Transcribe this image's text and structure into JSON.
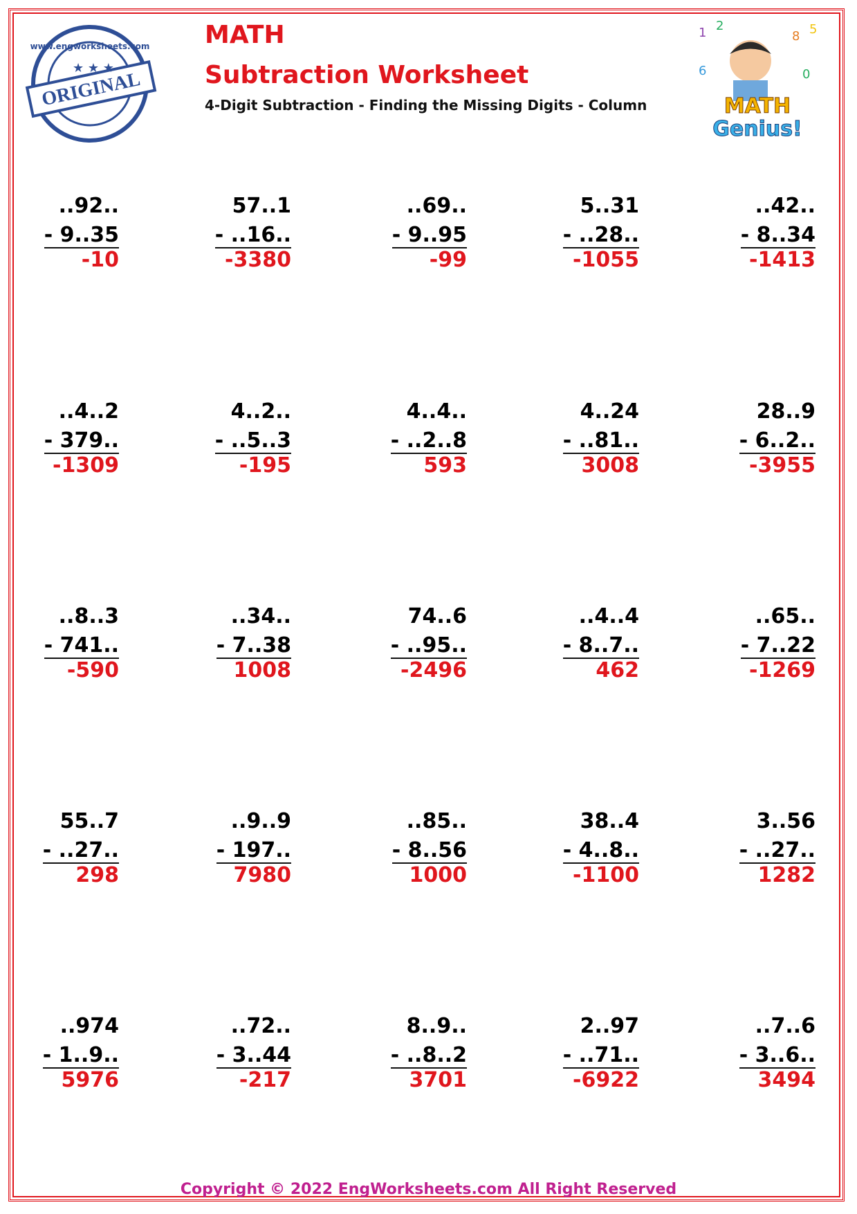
{
  "header": {
    "title": "MATH",
    "heading": "Subtraction Worksheet",
    "subtitle": "4-Digit Subtraction - Finding the Missing Digits - Column"
  },
  "stamp": {
    "label": "ORIGINAL",
    "url": "www.engworksheets.com"
  },
  "logo": {
    "line1": "MATH",
    "line2": "Genius!"
  },
  "problems": [
    [
      {
        "top": "..92..",
        "bottom": "- 9..35",
        "answer": -10
      },
      {
        "top": "57..1",
        "bottom": "- ..16..",
        "answer": -3380
      },
      {
        "top": "..69..",
        "bottom": "- 9..95",
        "answer": -99
      },
      {
        "top": "5..31",
        "bottom": "- ..28..",
        "answer": -1055
      },
      {
        "top": "..42..",
        "bottom": "- 8..34",
        "answer": -1413
      }
    ],
    [
      {
        "top": "..4..2",
        "bottom": "- 379..",
        "answer": -1309
      },
      {
        "top": "4..2..",
        "bottom": "- ..5..3",
        "answer": -195
      },
      {
        "top": "4..4..",
        "bottom": "- ..2..8",
        "answer": 593
      },
      {
        "top": "4..24",
        "bottom": "- ..81..",
        "answer": 3008
      },
      {
        "top": "28..9",
        "bottom": "- 6..2..",
        "answer": -3955
      }
    ],
    [
      {
        "top": "..8..3",
        "bottom": "- 741..",
        "answer": -590
      },
      {
        "top": "..34..",
        "bottom": "- 7..38",
        "answer": 1008
      },
      {
        "top": "74..6",
        "bottom": "- ..95..",
        "answer": -2496
      },
      {
        "top": "..4..4",
        "bottom": "- 8..7..",
        "answer": 462
      },
      {
        "top": "..65..",
        "bottom": "- 7..22",
        "answer": -1269
      }
    ],
    [
      {
        "top": "55..7",
        "bottom": "- ..27..",
        "answer": 298
      },
      {
        "top": "..9..9",
        "bottom": "- 197..",
        "answer": 7980
      },
      {
        "top": "..85..",
        "bottom": "- 8..56",
        "answer": 1000
      },
      {
        "top": "38..4",
        "bottom": "- 4..8..",
        "answer": -1100
      },
      {
        "top": "3..56",
        "bottom": "- ..27..",
        "answer": 1282
      }
    ],
    [
      {
        "top": "..974",
        "bottom": "- 1..9..",
        "answer": 5976
      },
      {
        "top": "..72..",
        "bottom": "- 3..44",
        "answer": -217
      },
      {
        "top": "8..9..",
        "bottom": "- ..8..2",
        "answer": 3701
      },
      {
        "top": "2..97",
        "bottom": "- ..71..",
        "answer": -6922
      },
      {
        "top": "..7..6",
        "bottom": "- 3..6..",
        "answer": 3494
      }
    ]
  ],
  "footer": "Copyright © 2022 EngWorksheets.com All Right Reserved"
}
